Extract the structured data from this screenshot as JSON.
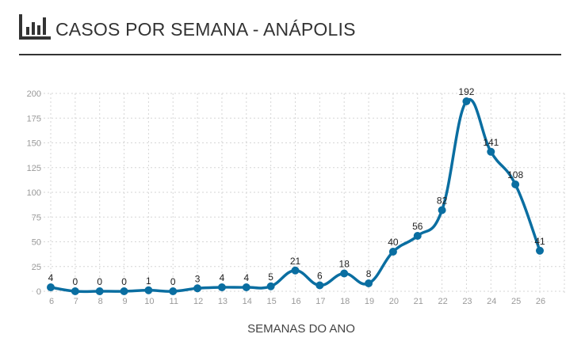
{
  "header": {
    "title": "CASOS POR SEMANA - ANÁPOLIS",
    "icon": "bar-chart-icon"
  },
  "colors": {
    "line": "#0a6ea1",
    "grid": "#d6d6d6",
    "text": "#333333"
  },
  "chart_data": {
    "type": "line",
    "title": "CASOS POR SEMANA - ANÁPOLIS",
    "xlabel": "SEMANAS DO ANO",
    "ylabel": "",
    "x": [
      6,
      7,
      8,
      9,
      10,
      11,
      12,
      13,
      14,
      15,
      16,
      17,
      18,
      19,
      20,
      21,
      22,
      23,
      24,
      25,
      26
    ],
    "values": [
      4,
      0,
      0,
      0,
      1,
      0,
      3,
      4,
      4,
      5,
      21,
      6,
      18,
      8,
      40,
      56,
      82,
      192,
      141,
      108,
      41
    ],
    "ylim": [
      0,
      200
    ],
    "yticks": [
      0,
      25,
      50,
      75,
      100,
      125,
      150,
      175,
      200
    ],
    "grid": true,
    "smooth": true,
    "data_labels": true
  }
}
